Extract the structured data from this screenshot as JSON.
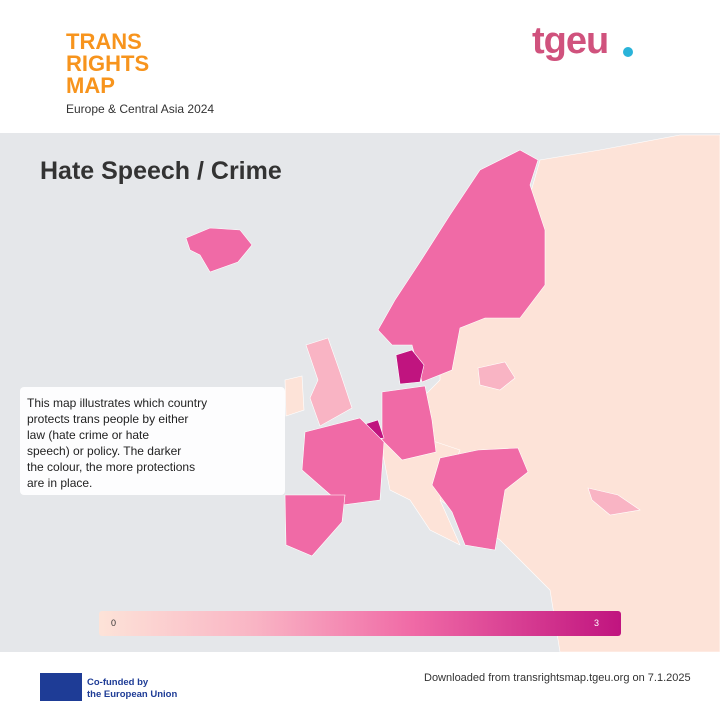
{
  "header": {
    "title_lines": [
      "TRANS",
      "RIGHTS",
      "MAP"
    ],
    "subtitle": "Europe & Central Asia 2024",
    "logo": "tgeu"
  },
  "map": {
    "title": "Hate Speech / Crime",
    "description_lines": [
      "This map illustrates which country",
      "protects trans people by either",
      "law (hate crime or hate",
      "speech) or policy. The darker",
      "the colour, the more protections",
      "are in place."
    ]
  },
  "legend": {
    "min": 0,
    "max": 3
  },
  "footer": {
    "eu_lines": [
      "Co-funded by",
      "the European Union"
    ],
    "download": "Downloaded from transrightsmap.tgeu.org on 7.1.2025"
  }
}
